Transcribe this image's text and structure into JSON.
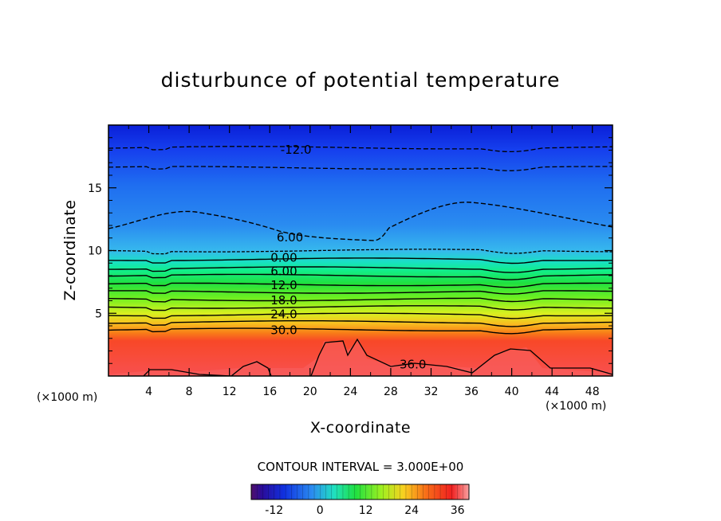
{
  "chart_data": {
    "type": "heatmap",
    "title": "disturbunce of potential temperature",
    "xlabel": "X-coordinate",
    "ylabel": "Z-coordinate",
    "x_unit_label": "(×1000 m)",
    "xlim": [
      0,
      50
    ],
    "ylim": [
      0,
      20
    ],
    "x_ticks": [
      4,
      8,
      12,
      16,
      20,
      24,
      28,
      32,
      36,
      40,
      44,
      48
    ],
    "y_ticks": [
      5,
      10,
      15
    ],
    "contour_interval_text": "CONTOUR INTERVAL = 3.000E+00",
    "contour_interval": 3.0,
    "contour_labels": [
      {
        "text": "-12.0",
        "x": 18.6,
        "z": 18.1
      },
      {
        "text": "6.00",
        "x": 18.0,
        "z": 11.1
      },
      {
        "text": "0.00",
        "x": 17.4,
        "z": 9.5
      },
      {
        "text": "6.00",
        "x": 17.4,
        "z": 8.4
      },
      {
        "text": "12.0",
        "x": 17.4,
        "z": 7.3
      },
      {
        "text": "18.0",
        "x": 17.4,
        "z": 6.1
      },
      {
        "text": "24.0",
        "x": 17.4,
        "z": 5.0
      },
      {
        "text": "30.0",
        "x": 17.4,
        "z": 3.7
      },
      {
        "text": "36.0",
        "x": 30.2,
        "z": 1.0
      }
    ],
    "contour_levels": [
      {
        "value": -12,
        "z": 18.2,
        "dashed": true
      },
      {
        "value": -9,
        "z": 16.6,
        "dashed": true
      },
      {
        "value": 0,
        "z": 10.0,
        "dashed": true
      },
      {
        "value": 3,
        "z": 9.3,
        "dashed": false
      },
      {
        "value": 6,
        "z": 8.6,
        "dashed": false
      },
      {
        "value": 9,
        "z": 8.0,
        "dashed": false
      },
      {
        "value": 12,
        "z": 7.3,
        "dashed": false
      },
      {
        "value": 15,
        "z": 6.7,
        "dashed": false
      },
      {
        "value": 18,
        "z": 6.1,
        "dashed": false
      },
      {
        "value": 21,
        "z": 5.5,
        "dashed": false
      },
      {
        "value": 24,
        "z": 4.9,
        "dashed": false
      },
      {
        "value": 27,
        "z": 4.3,
        "dashed": false
      },
      {
        "value": 30,
        "z": 3.7,
        "dashed": false
      }
    ],
    "colorbar": {
      "min": -18,
      "max": 39,
      "tick_labels": [
        "-12",
        "0",
        "12",
        "24",
        "36"
      ],
      "tick_values": [
        -12,
        0,
        12,
        24,
        36
      ]
    }
  }
}
